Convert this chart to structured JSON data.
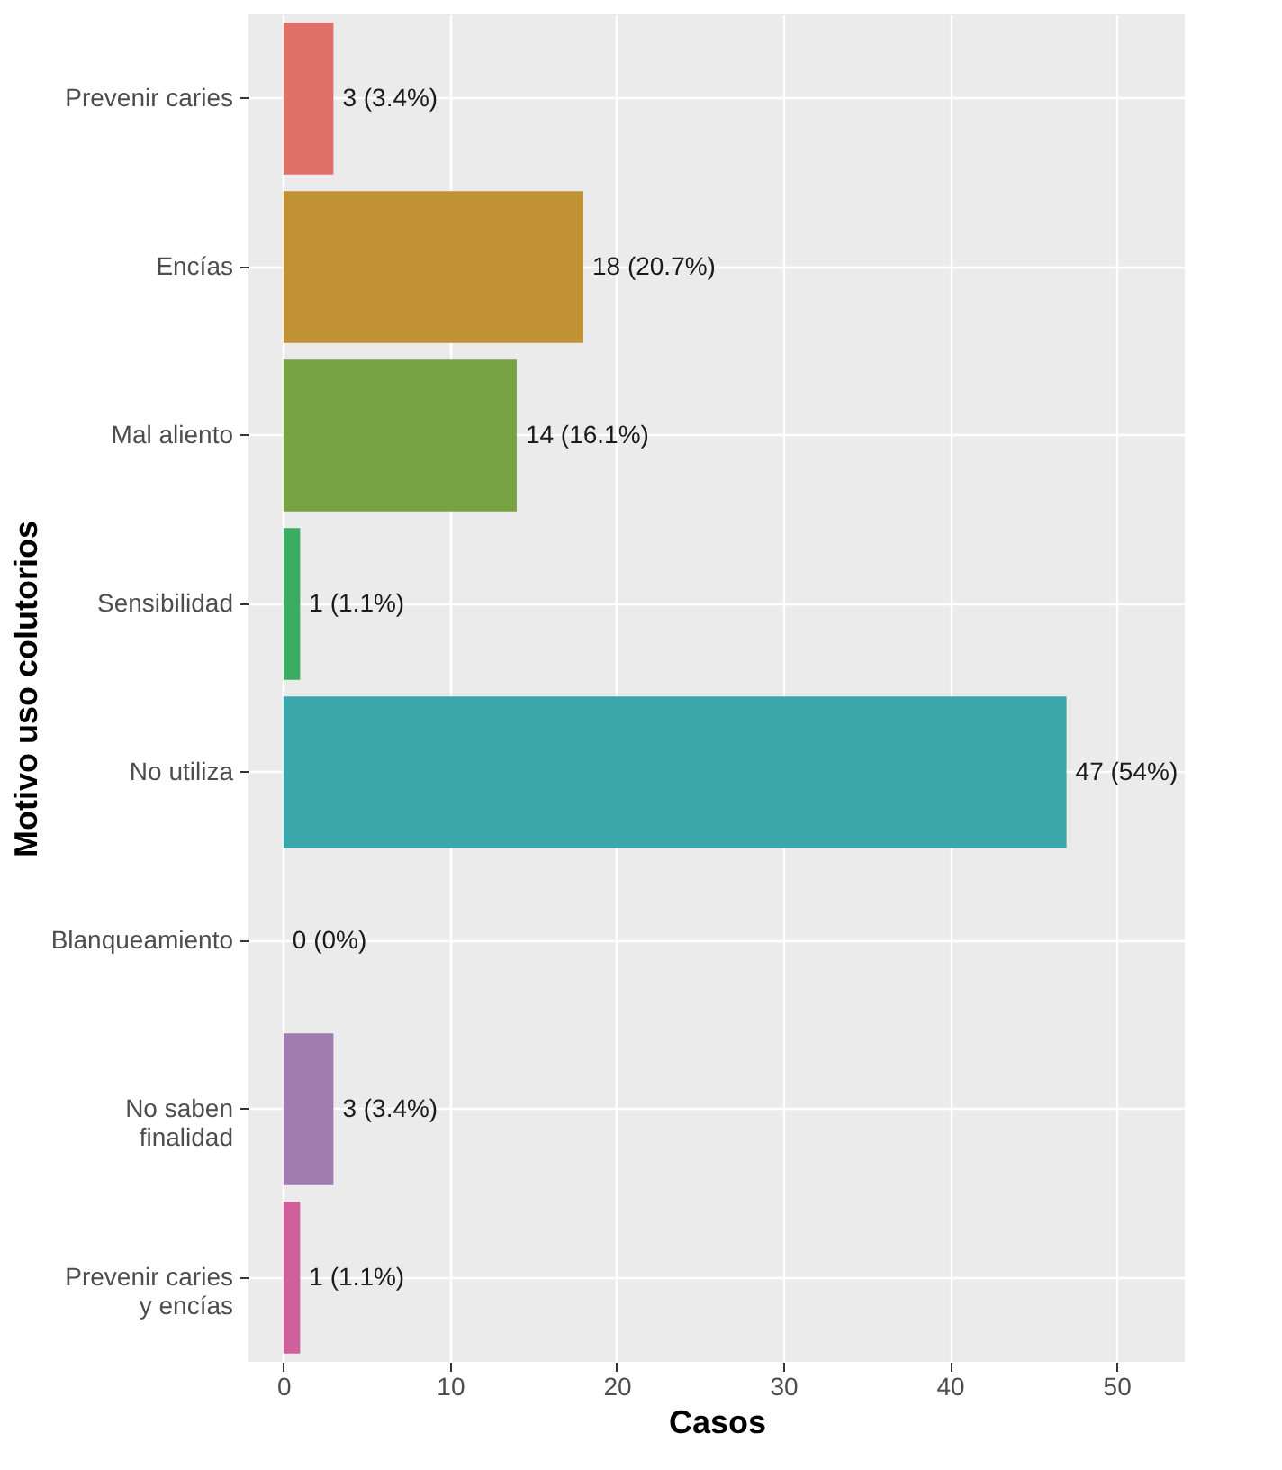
{
  "chart_data": {
    "type": "bar",
    "orientation": "horizontal",
    "xlabel": "Casos",
    "ylabel": "Motivo uso colutorios",
    "categories": [
      "Prevenir caries",
      "Encías",
      "Mal aliento",
      "Sensibilidad",
      "No utiliza",
      "Blanqueamiento",
      "No saben\nfinalidad",
      "Prevenir caries\ny encías"
    ],
    "values": [
      3,
      18,
      14,
      1,
      47,
      0,
      3,
      1
    ],
    "colors": [
      "#e0716a",
      "#c09234",
      "#78a342",
      "#3aad63",
      "#3aa8aa",
      "#38a0e0",
      "#a07cb0",
      "#d0609c"
    ],
    "value_labels": [
      "3 (3.4%)",
      "18 (20.7%)",
      "14 (16.1%)",
      "1 (1.1%)",
      "47 (54%)",
      "0 (0%)",
      "3 (3.4%)",
      "1 (1.1%)"
    ],
    "xlim": [
      -2.1,
      54.1
    ],
    "xticks": [
      0,
      10,
      20,
      30,
      40,
      50
    ],
    "grid": true,
    "legend": false
  }
}
